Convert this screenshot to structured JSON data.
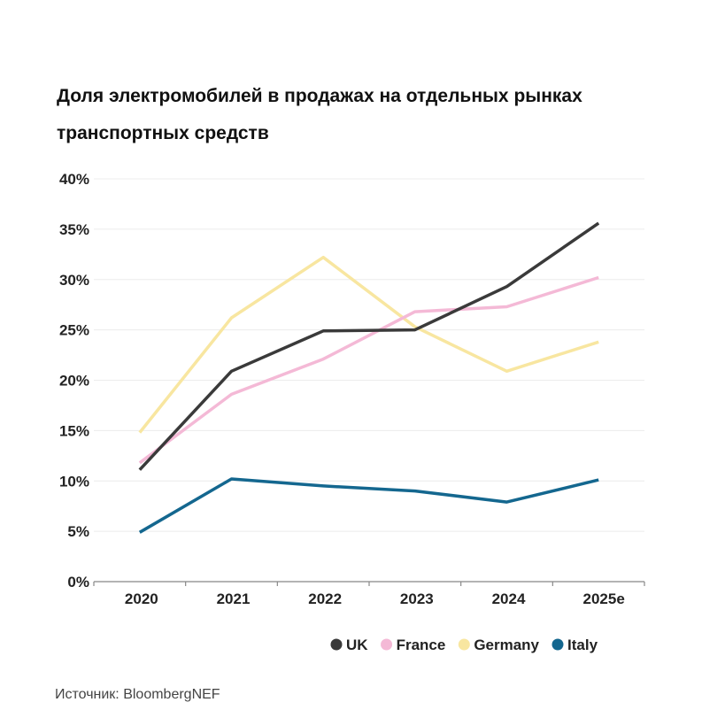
{
  "chart_data": {
    "type": "line",
    "title": "Доля электромобилей в продажах на отдельных рынках транспортных средств",
    "xlabel": "",
    "ylabel": "",
    "categories": [
      "2020",
      "2021",
      "2022",
      "2023",
      "2024",
      "2025e"
    ],
    "ylim": [
      0,
      40
    ],
    "yticks": [
      "0%",
      "5%",
      "10%",
      "15%",
      "20%",
      "25%",
      "30%",
      "35%",
      "40%"
    ],
    "grid": true,
    "legend_position": "bottom-right",
    "series": [
      {
        "name": "UK",
        "color": "#3a3a3a",
        "values": [
          11.1,
          20.9,
          24.9,
          25.0,
          29.3,
          35.6
        ]
      },
      {
        "name": "France",
        "color": "#f4b9d6",
        "values": [
          11.8,
          18.6,
          22.1,
          26.8,
          27.3,
          30.2
        ]
      },
      {
        "name": "Germany",
        "color": "#f8e6a0",
        "values": [
          14.8,
          26.2,
          32.2,
          25.3,
          20.9,
          23.8
        ]
      },
      {
        "name": "Italy",
        "color": "#14678f",
        "values": [
          4.9,
          10.2,
          9.5,
          9.0,
          7.9,
          10.1
        ]
      }
    ]
  },
  "source": "Источник: BloombergNEF"
}
